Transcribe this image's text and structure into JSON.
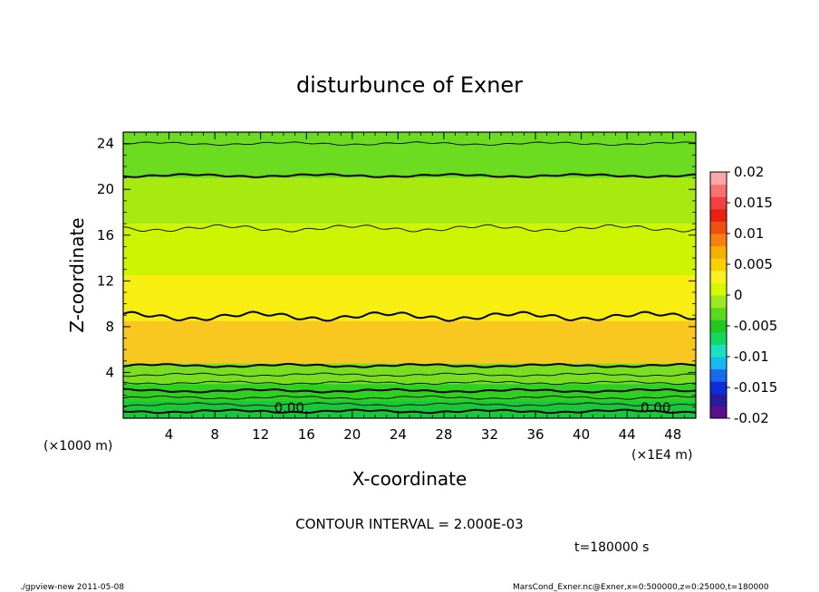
{
  "chart_data": {
    "type": "heatmap",
    "title": "disturbunce of Exner",
    "xlabel": "X-coordinate",
    "ylabel": "Z-coordinate",
    "x_unit_left": "(×1000 m)",
    "x_unit_right": "(×1E4 m)",
    "xlim": [
      0,
      50
    ],
    "ylim": [
      0,
      25
    ],
    "xticks": [
      "4",
      "8",
      "12",
      "16",
      "20",
      "24",
      "28",
      "32",
      "36",
      "40",
      "44",
      "48"
    ],
    "yticks": [
      "4",
      "8",
      "12",
      "16",
      "20",
      "24"
    ],
    "colorbar": {
      "ticks": [
        "0.02",
        "0.015",
        "0.01",
        "0.005",
        "0",
        "-0.005",
        "-0.01",
        "-0.015",
        "-0.02"
      ],
      "range": [
        -0.02,
        0.02
      ],
      "colors": [
        "#5a0f8c",
        "#2a1aa0",
        "#0a2fd8",
        "#1a6af0",
        "#18b8f0",
        "#18e0c0",
        "#10d860",
        "#22c820",
        "#5ad820",
        "#9ae820",
        "#d8f800",
        "#f8f020",
        "#f8d000",
        "#f8b000",
        "#f88010",
        "#f05010",
        "#e82010",
        "#f04040",
        "#f87070",
        "#f8a8a8"
      ]
    },
    "layers": [
      {
        "z": [
          0,
          1.5
        ],
        "value": 0.0,
        "color": "#18c83a"
      },
      {
        "z": [
          1.5,
          3.0
        ],
        "value": 0.0015,
        "color": "#30d020"
      },
      {
        "z": [
          3.0,
          4.8
        ],
        "value": 0.003,
        "color": "#7ade20"
      },
      {
        "z": [
          4.8,
          8.5
        ],
        "value": 0.009,
        "color": "#f8c820"
      },
      {
        "z": [
          8.5,
          12.5
        ],
        "value": 0.007,
        "color": "#f8ee10"
      },
      {
        "z": [
          12.5,
          17.0
        ],
        "value": 0.005,
        "color": "#cdf400"
      },
      {
        "z": [
          17.0,
          21.0
        ],
        "value": 0.004,
        "color": "#a8ea10"
      },
      {
        "z": [
          21.0,
          25.0
        ],
        "value": 0.002,
        "color": "#6cdc20"
      }
    ],
    "contours": [
      {
        "level": "0.00",
        "z": 0.6,
        "bold": true,
        "label": "0.00",
        "label_x": [
          14.5,
          46.5
        ]
      },
      {
        "z": 1.2,
        "bold": false
      },
      {
        "z": 1.8,
        "bold": false
      },
      {
        "z": 2.4,
        "bold": true
      },
      {
        "z": 3.1,
        "bold": false
      },
      {
        "z": 3.8,
        "bold": false
      },
      {
        "z": 4.6,
        "bold": true
      },
      {
        "z": 8.9,
        "bold": true
      },
      {
        "z": 16.6,
        "bold": false
      },
      {
        "z": 21.2,
        "bold": true
      },
      {
        "z": 24.0,
        "bold": false
      }
    ]
  },
  "contour_interval_label": "CONTOUR INTERVAL = 2.000E-03",
  "time_label": "t=180000 s",
  "footer_left": "./gpview-new   2011-05-08",
  "footer_right": "MarsCond_Exner.nc@Exner,x=0:500000,z=0:25000,t=180000"
}
